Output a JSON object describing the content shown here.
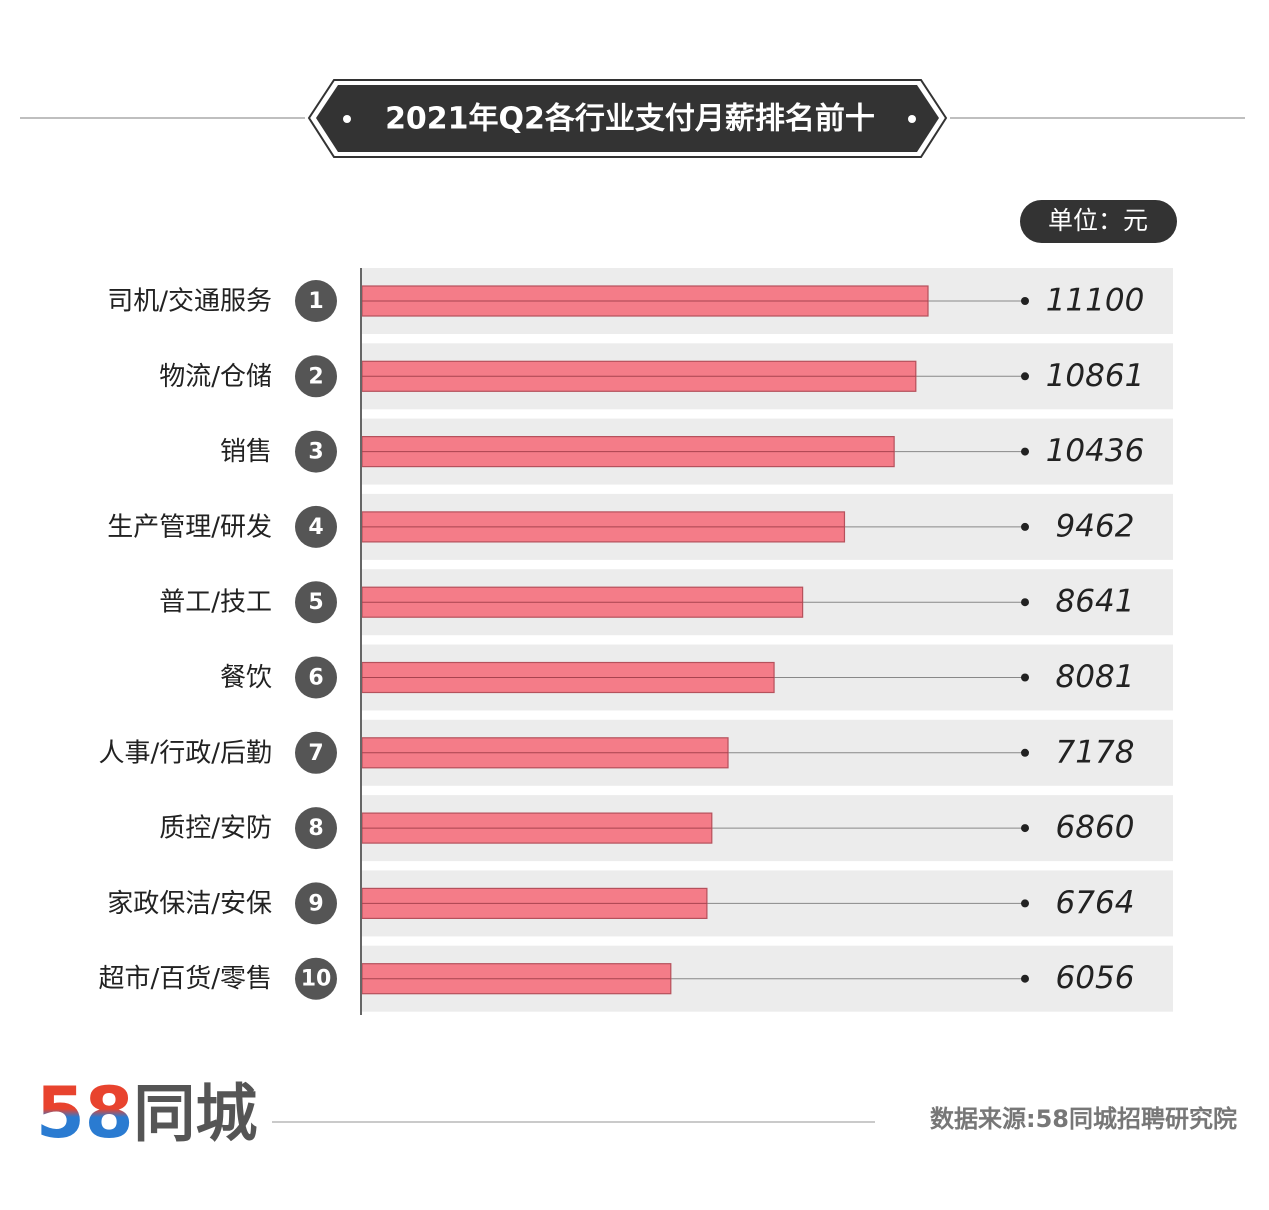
{
  "chart_data": {
    "type": "bar",
    "orientation": "horizontal",
    "title": "2021年Q2各行业支付月薪排名前十",
    "unit_label": "单位：元",
    "categories": [
      "司机/交通服务",
      "物流/仓储",
      "销售",
      "生产管理/研发",
      "普工/技工",
      "餐饮",
      "人事/行政/后勤",
      "质控/安防",
      "家政保洁/安保",
      "超市/百货/零售"
    ],
    "ranks": [
      1,
      2,
      3,
      4,
      5,
      6,
      7,
      8,
      9,
      10
    ],
    "values": [
      11100,
      10861,
      10436,
      9462,
      8641,
      8081,
      7178,
      6860,
      6764,
      6056
    ],
    "color": "#f47c88",
    "source": "数据来源:58同城招聘研究院",
    "logo": {
      "digits": "58",
      "name": "同城"
    }
  }
}
